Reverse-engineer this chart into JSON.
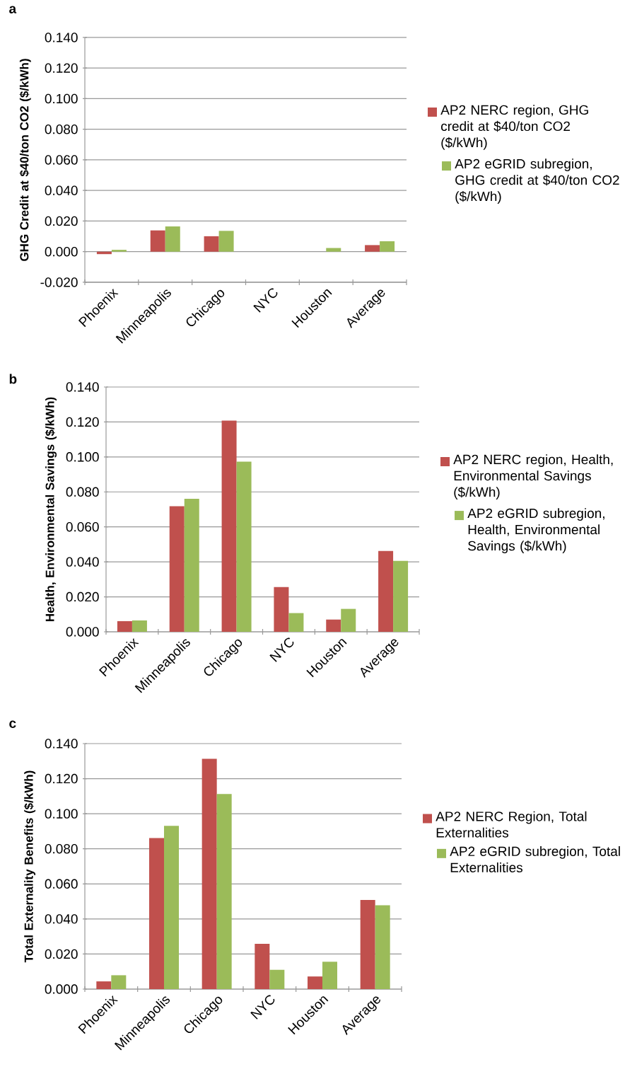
{
  "chart_data": [
    {
      "type": "bar",
      "title": "a",
      "ylabel": "GHG Credit at $40/ton CO2 ($/kWh)",
      "categories": [
        "Phoenix",
        "Minneapolis",
        "Chicago",
        "NYC",
        "Houston",
        "Average"
      ],
      "series": [
        {
          "name": "AP2 NERC region, GHG credit at $40/ton CO2 ($/kWh)",
          "color": "#c0504d",
          "values": [
            -0.0016,
            0.0139,
            0.0101,
            0,
            0,
            0.0043
          ]
        },
        {
          "name": "AP2 eGRID subregion, GHG credit at $40/ton CO2 ($/kWh)",
          "color": "#9bbb59",
          "values": [
            0.0012,
            0.0165,
            0.0136,
            0,
            0.0024,
            0.0068
          ]
        }
      ],
      "ylim": [
        -0.02,
        0.14
      ],
      "yticks": [
        {
          "value": -0.02,
          "label": "-0.020"
        },
        {
          "value": 0,
          "label": "0.000"
        },
        {
          "value": 0.02,
          "label": "0.020"
        },
        {
          "value": 0.04,
          "label": "0.040"
        },
        {
          "value": 0.06,
          "label": "0.060"
        },
        {
          "value": 0.08,
          "label": "0.080"
        },
        {
          "value": 0.1,
          "label": "0.100"
        },
        {
          "value": 0.12,
          "label": "0.120"
        },
        {
          "value": 0.14,
          "label": "0.140"
        }
      ],
      "grid": "y",
      "legend": "right"
    },
    {
      "type": "bar",
      "title": "b",
      "ylabel": "Health, Environmental Savings ($/kWh)",
      "categories": [
        "Phoenix",
        "Minneapolis",
        "Chicago",
        "NYC",
        "Houston",
        "Average"
      ],
      "series": [
        {
          "name": "AP2 NERC region, Health, Environmental Savings ($/kWh)",
          "color": "#c0504d",
          "values": [
            0.0061,
            0.0718,
            0.1208,
            0.0256,
            0.007,
            0.0462
          ]
        },
        {
          "name": "AP2 eGRID subregion, Health, Environmental Savings ($/kWh)",
          "color": "#9bbb59",
          "values": [
            0.0065,
            0.0761,
            0.0973,
            0.0107,
            0.0131,
            0.0406
          ]
        }
      ],
      "ylim": [
        0,
        0.14
      ],
      "yticks": [
        {
          "value": 0,
          "label": "0.000"
        },
        {
          "value": 0.02,
          "label": "0.020"
        },
        {
          "value": 0.04,
          "label": "0.040"
        },
        {
          "value": 0.06,
          "label": "0.060"
        },
        {
          "value": 0.08,
          "label": "0.080"
        },
        {
          "value": 0.1,
          "label": "0.100"
        },
        {
          "value": 0.12,
          "label": "0.120"
        },
        {
          "value": 0.14,
          "label": "0.140"
        }
      ],
      "grid": "y",
      "legend": "right"
    },
    {
      "type": "bar",
      "title": "c",
      "ylabel": "Total Externality Benefits ($/kWh)",
      "categories": [
        "Phoenix",
        "Minneapolis",
        "Chicago",
        "NYC",
        "Houston",
        "Average"
      ],
      "series": [
        {
          "name": "AP2 NERC Region,  Total Externalities",
          "color": "#c0504d",
          "values": [
            0.0044,
            0.0861,
            0.1313,
            0.0258,
            0.0072,
            0.0508
          ]
        },
        {
          "name": "AP2 eGRID subregion, Total Externalities",
          "color": "#9bbb59",
          "values": [
            0.0079,
            0.0931,
            0.1113,
            0.011,
            0.0156,
            0.0478
          ]
        }
      ],
      "ylim": [
        0,
        0.14
      ],
      "yticks": [
        {
          "value": 0,
          "label": "0.000"
        },
        {
          "value": 0.02,
          "label": "0.020"
        },
        {
          "value": 0.04,
          "label": "0.040"
        },
        {
          "value": 0.06,
          "label": "0.060"
        },
        {
          "value": 0.08,
          "label": "0.080"
        },
        {
          "value": 0.1,
          "label": "0.100"
        },
        {
          "value": 0.12,
          "label": "0.120"
        },
        {
          "value": 0.14,
          "label": "0.140"
        }
      ],
      "grid": "y",
      "legend": "right"
    }
  ]
}
